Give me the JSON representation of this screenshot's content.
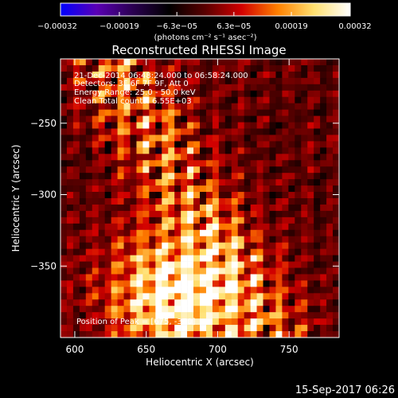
{
  "chart_data": {
    "type": "heatmap",
    "title": "Reconstructed RHESSI Image",
    "xlabel": "Heliocentric X (arcsec)",
    "ylabel": "Heliocentric Y (arcsec)",
    "xlim": [
      590,
      785
    ],
    "ylim": [
      -400,
      -205
    ],
    "x_ticks": [
      {
        "value": 600,
        "label": "600"
      },
      {
        "value": 650,
        "label": "650"
      },
      {
        "value": 700,
        "label": "700"
      },
      {
        "value": 750,
        "label": "750"
      }
    ],
    "y_ticks": [
      {
        "value": -250,
        "label": "−250"
      },
      {
        "value": -300,
        "label": "−300"
      },
      {
        "value": -350,
        "label": "−350"
      }
    ],
    "colorbar": {
      "min": -0.00032,
      "max": 0.00032,
      "ticks": [
        {
          "value": -0.00032,
          "label": "−0.00032"
        },
        {
          "value": -0.00019,
          "label": "−0.00019"
        },
        {
          "value": -6.3e-05,
          "label": "−6.3e−05"
        },
        {
          "value": 6.3e-05,
          "label": "6.3e−05"
        },
        {
          "value": 0.00019,
          "label": "0.00019"
        },
        {
          "value": 0.00032,
          "label": "0.00032"
        }
      ],
      "unit_label": "(photons cm⁻² s⁻¹ asec⁻²)",
      "colors": [
        "#0000ff",
        "#5a00b4",
        "#2a0050",
        "#000000",
        "#5a0000",
        "#d20000",
        "#ff8000",
        "#ffe070",
        "#ffffff"
      ]
    },
    "peak": {
      "x": 675,
      "y": -370
    },
    "grid": false
  },
  "info": {
    "time_range": "21-Dec-2014 06:48:24.000 to 06:58:24.000",
    "detectors": "Detectors: 3F 6F 7F 9F, Att 0",
    "energy": "Energy Range: 25.0 - 50.0 keV",
    "clean": "Clean    Total counts: 6.55E+03",
    "peak_text": "Position of Peak = [675, -370]"
  },
  "footer": {
    "timestamp": "15-Sep-2017 06:26"
  }
}
